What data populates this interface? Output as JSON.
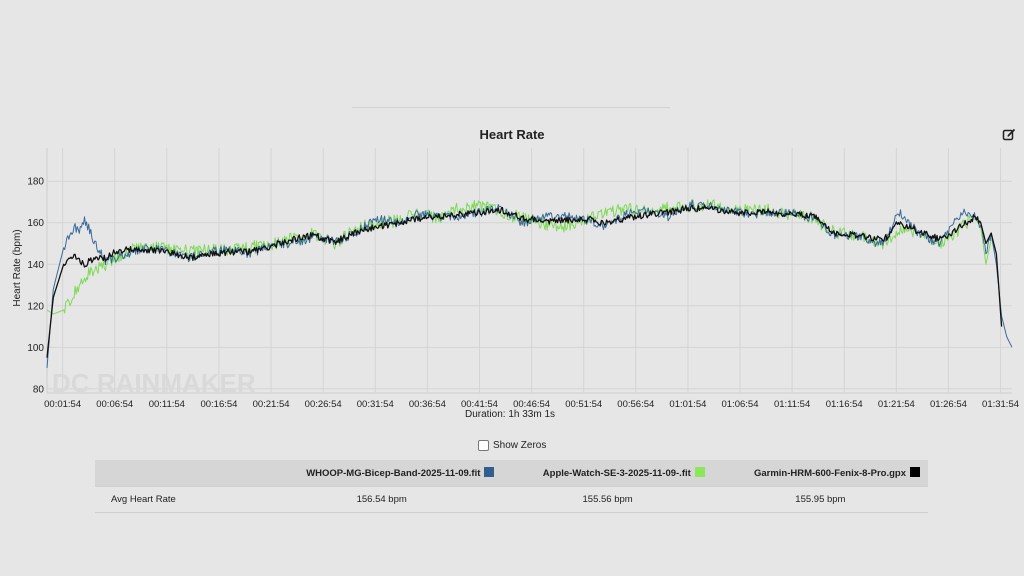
{
  "chart_data": {
    "type": "line",
    "title": "Heart Rate",
    "xlabel": "Duration: 1h 33m 1s",
    "ylabel": "Heart Rate (bpm)",
    "x_unit": "minutes",
    "xlim": [
      0.4,
      93.0
    ],
    "ylim": [
      78,
      196
    ],
    "yticks": [
      80,
      100,
      120,
      140,
      160,
      180
    ],
    "xtick_values": [
      1.9,
      6.9,
      11.9,
      16.9,
      21.9,
      26.9,
      31.9,
      36.9,
      41.9,
      46.9,
      51.9,
      56.9,
      61.9,
      66.9,
      71.9,
      76.9,
      81.9,
      86.9,
      91.9
    ],
    "xtick_labels": [
      "00:01:54",
      "00:06:54",
      "00:11:54",
      "00:16:54",
      "00:21:54",
      "00:26:54",
      "00:31:54",
      "00:36:54",
      "00:41:54",
      "00:46:54",
      "00:51:54",
      "00:56:54",
      "01:01:54",
      "01:06:54",
      "01:11:54",
      "01:16:54",
      "01:21:54",
      "01:26:54",
      "01:31:54"
    ],
    "grid": true,
    "watermark": "DC RAINMAKER",
    "series": [
      {
        "name": "WHOOP-MG-Bicep-Band-2025-11-09.fit",
        "color": "#3a6a9a",
        "x": [
          0.4,
          1.0,
          2.0,
          3.0,
          3.5,
          4.0,
          5.0,
          6.0,
          7.0,
          8.0,
          10.0,
          12.0,
          14.0,
          16.0,
          18.0,
          20.0,
          22.0,
          24.0,
          26.0,
          28.0,
          30.0,
          32.0,
          34.0,
          36.0,
          38.0,
          40.0,
          42.0,
          44.0,
          46.0,
          48.0,
          50.0,
          52.0,
          54.0,
          56.0,
          58.0,
          60.0,
          62.0,
          64.0,
          66.0,
          68.0,
          70.0,
          72.0,
          74.0,
          76.0,
          78.0,
          80.0,
          81.0,
          82.0,
          84.0,
          86.0,
          87.5,
          88.5,
          89.5,
          90.0,
          90.5,
          91.0,
          91.5,
          92.0,
          92.5,
          93.0
        ],
        "values": [
          90,
          128,
          148,
          158,
          156,
          162,
          150,
          142,
          143,
          145,
          148,
          146,
          143,
          146,
          147,
          145,
          150,
          150,
          153,
          151,
          155,
          162,
          160,
          164,
          163,
          163,
          165,
          167,
          160,
          163,
          163,
          162,
          158,
          164,
          166,
          163,
          169,
          168,
          166,
          164,
          165,
          165,
          162,
          154,
          154,
          150,
          152,
          166,
          155,
          150,
          160,
          166,
          163,
          158,
          145,
          155,
          140,
          115,
          105,
          100
        ]
      },
      {
        "name": "Apple-Watch-SE-3-2025-11-09-.fit",
        "color": "#7ed957",
        "x": [
          0.4,
          1.0,
          2.0,
          3.0,
          4.0,
          5.0,
          6.0,
          7.0,
          8.0,
          10.0,
          12.0,
          14.0,
          16.0,
          18.0,
          20.0,
          22.0,
          24.0,
          26.0,
          28.0,
          30.0,
          32.0,
          34.0,
          36.0,
          38.0,
          40.0,
          42.0,
          44.0,
          46.0,
          48.0,
          50.0,
          52.0,
          54.0,
          56.0,
          58.0,
          60.0,
          62.0,
          64.0,
          66.0,
          68.0,
          70.0,
          72.0,
          74.0,
          76.0,
          78.0,
          80.0,
          81.0,
          82.0,
          84.0,
          86.0,
          87.5,
          88.5,
          89.5,
          90.0,
          90.5,
          91.0
        ],
        "values": [
          118,
          116,
          118,
          126,
          134,
          137,
          140,
          143,
          146,
          149,
          147,
          146,
          147,
          147,
          148,
          150,
          152,
          155,
          150,
          157,
          160,
          161,
          164,
          162,
          167,
          168,
          165,
          162,
          160,
          158,
          162,
          165,
          166,
          166,
          167,
          168,
          168,
          167,
          166,
          166,
          164,
          162,
          155,
          154,
          150,
          150,
          156,
          156,
          150,
          155,
          160,
          162,
          158,
          140,
          152
        ]
      },
      {
        "name": "Garmin-HRM-600-Fenix-8-Pro.gpx",
        "color": "#111111",
        "x": [
          0.4,
          1.0,
          2.0,
          3.0,
          4.0,
          5.0,
          6.0,
          7.0,
          8.0,
          10.0,
          12.0,
          14.0,
          16.0,
          18.0,
          20.0,
          22.0,
          24.0,
          26.0,
          28.0,
          30.0,
          32.0,
          34.0,
          36.0,
          38.0,
          40.0,
          42.0,
          44.0,
          46.0,
          48.0,
          50.0,
          52.0,
          54.0,
          56.0,
          58.0,
          60.0,
          62.0,
          64.0,
          66.0,
          68.0,
          70.0,
          72.0,
          74.0,
          76.0,
          78.0,
          80.0,
          81.0,
          82.0,
          84.0,
          86.0,
          87.5,
          88.5,
          89.5,
          90.0,
          90.5,
          91.0,
          91.5,
          92.0
        ],
        "values": [
          95,
          124,
          140,
          144,
          140,
          143,
          143,
          146,
          147,
          147,
          146,
          143,
          145,
          146,
          146,
          149,
          152,
          154,
          151,
          155,
          158,
          160,
          162,
          163,
          164,
          165,
          166,
          162,
          161,
          161,
          162,
          160,
          162,
          164,
          165,
          167,
          167,
          165,
          165,
          165,
          164,
          163,
          155,
          154,
          152,
          153,
          160,
          156,
          152,
          156,
          160,
          163,
          160,
          150,
          155,
          145,
          110
        ]
      }
    ]
  },
  "ui": {
    "show_zeros_label": "Show Zeros"
  },
  "table": {
    "row_label": "Avg Heart Rate",
    "headers": [
      {
        "name": "WHOOP-MG-Bicep-Band-2025-11-09.fit",
        "color": "#2f5f8f"
      },
      {
        "name": "Apple-Watch-SE-3-2025-11-09-.fit",
        "color": "#8ce65a"
      },
      {
        "name": "Garmin-HRM-600-Fenix-8-Pro.gpx",
        "color": "#000000"
      }
    ],
    "values": [
      "156.54 bpm",
      "155.56 bpm",
      "155.95 bpm"
    ]
  }
}
